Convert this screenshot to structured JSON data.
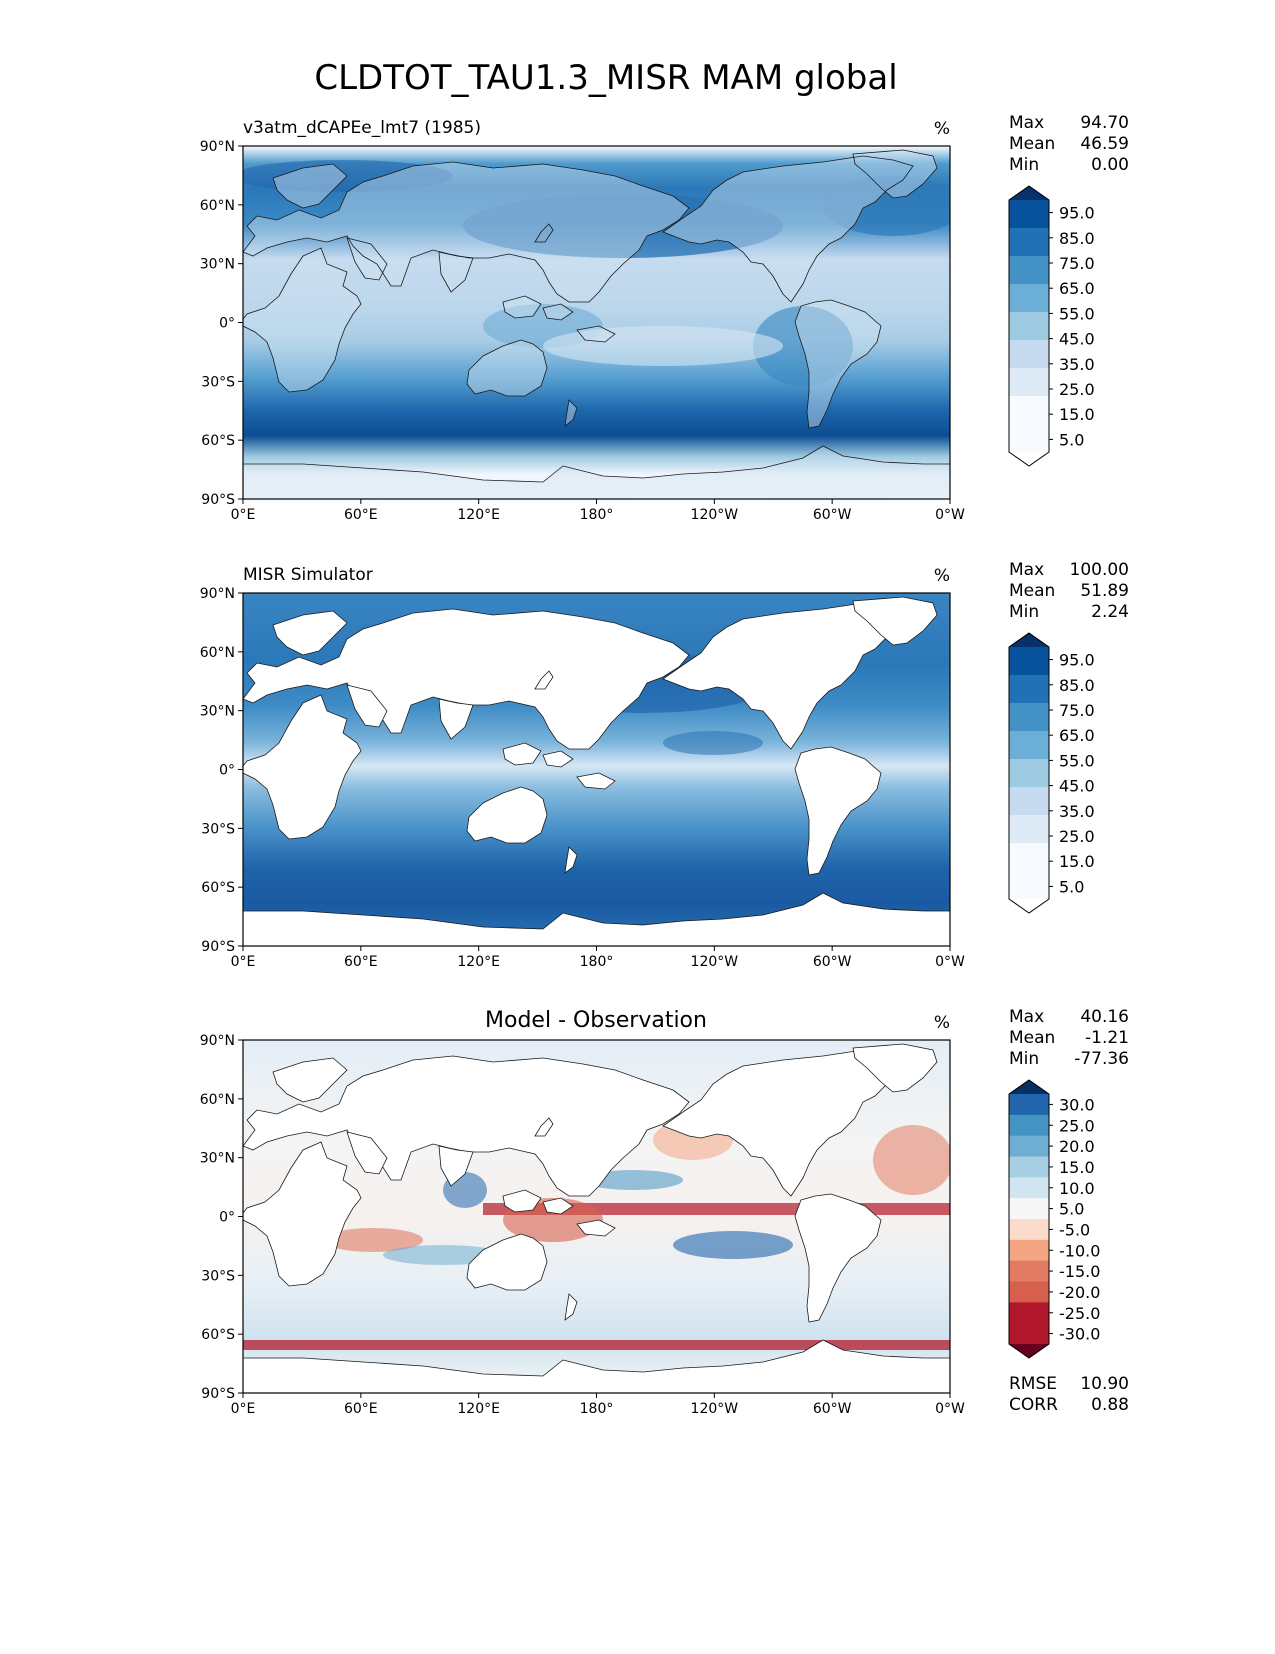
{
  "figure": {
    "title": "CLDTOT_TAU1.3_MISR MAM global"
  },
  "axes": {
    "yticks": [
      "90°N",
      "60°N",
      "30°N",
      "0°",
      "30°S",
      "60°S",
      "90°S"
    ],
    "xticks": [
      "0°E",
      "60°E",
      "120°E",
      "180°",
      "120°W",
      "60°W",
      "0°W"
    ]
  },
  "panels": [
    {
      "id": "model",
      "left_title": "v3atm_dCAPEe_lmt7 (1985)",
      "center_title": "",
      "units": "%",
      "stats": [
        {
          "label": "Max",
          "value": "94.70"
        },
        {
          "label": "Mean",
          "value": "46.59"
        },
        {
          "label": "Min",
          "value": "0.00"
        }
      ],
      "colorbar": {
        "labels": [
          "95.0",
          "85.0",
          "75.0",
          "65.0",
          "55.0",
          "45.0",
          "35.0",
          "25.0",
          "15.0",
          "5.0"
        ],
        "colors": [
          "#08306b",
          "#08519c",
          "#2171b5",
          "#4292c6",
          "#6baed6",
          "#9ecae1",
          "#c6dbef",
          "#deebf7",
          "#f7fbff",
          "#ffffff"
        ]
      }
    },
    {
      "id": "obs",
      "left_title": "MISR Simulator",
      "center_title": "",
      "units": "%",
      "stats": [
        {
          "label": "Max",
          "value": "100.00"
        },
        {
          "label": "Mean",
          "value": "51.89"
        },
        {
          "label": "Min",
          "value": "2.24"
        }
      ],
      "colorbar": {
        "labels": [
          "95.0",
          "85.0",
          "75.0",
          "65.0",
          "55.0",
          "45.0",
          "35.0",
          "25.0",
          "15.0",
          "5.0"
        ],
        "colors": [
          "#08306b",
          "#08519c",
          "#2171b5",
          "#4292c6",
          "#6baed6",
          "#9ecae1",
          "#c6dbef",
          "#deebf7",
          "#f7fbff",
          "#ffffff"
        ]
      }
    },
    {
      "id": "diff",
      "left_title": "",
      "center_title": "Model - Observation",
      "units": "%",
      "stats": [
        {
          "label": "Max",
          "value": "40.16"
        },
        {
          "label": "Mean",
          "value": "-1.21"
        },
        {
          "label": "Min",
          "value": "-77.36"
        }
      ],
      "extra_stats": [
        {
          "label": "RMSE",
          "value": "10.90"
        },
        {
          "label": "CORR",
          "value": "0.88"
        }
      ],
      "colorbar": {
        "labels": [
          "30.0",
          "25.0",
          "20.0",
          "15.0",
          "10.0",
          "5.0",
          "-5.0",
          "-10.0",
          "-15.0",
          "-20.0",
          "-25.0",
          "-30.0"
        ],
        "colors": [
          "#053061",
          "#2166ac",
          "#4393c3",
          "#6eaed2",
          "#a6cfe4",
          "#d1e5f0",
          "#f7f7f7",
          "#fbdccc",
          "#f4a582",
          "#e27b62",
          "#d6604d",
          "#b2182b",
          "#67001f"
        ]
      }
    }
  ]
}
